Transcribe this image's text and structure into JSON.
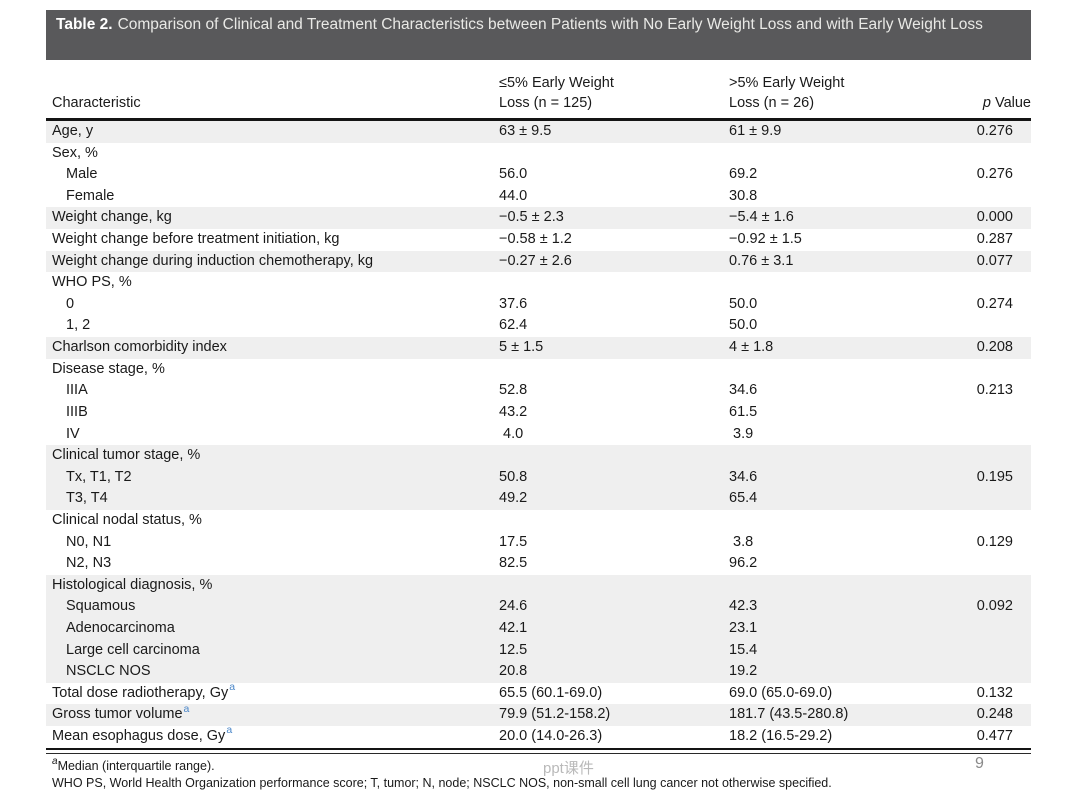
{
  "page": {
    "watermark": "ppt课件",
    "number": "9"
  },
  "title": {
    "label": "Table 2.",
    "text": "Comparison of Clinical and Treatment Characteristics between Patients with No Early Weight Loss and with Early Weight Loss"
  },
  "columns": {
    "characteristic": "Characteristic",
    "col2_line1": "≤5% Early Weight",
    "col2_line2": "Loss (n = 125)",
    "col3_line1": ">5% Early Weight",
    "col3_line2": "Loss (n = 26)",
    "p_italic": "p",
    "p_rest": " Value"
  },
  "colors": {
    "title_bar": "#59595b",
    "row_stripe": "#efefef",
    "superscript_blue": "#4a86c8",
    "rule_black": "#141414"
  },
  "table": {
    "rows": [
      {
        "label": "Age, y",
        "indent": false,
        "shaded": true,
        "sup": "",
        "c2": "63 ± 9.5",
        "c3": "61 ± 9.9",
        "p": "0.276"
      },
      {
        "label": "Sex, %",
        "indent": false,
        "shaded": false,
        "sup": "",
        "c2": "",
        "c3": "",
        "p": ""
      },
      {
        "label": "Male",
        "indent": true,
        "shaded": false,
        "sup": "",
        "c2": "56.0",
        "c3": "69.2",
        "p": "0.276"
      },
      {
        "label": "Female",
        "indent": true,
        "shaded": false,
        "sup": "",
        "c2": "44.0",
        "c3": "30.8",
        "p": ""
      },
      {
        "label": "Weight change, kg",
        "indent": false,
        "shaded": true,
        "sup": "",
        "c2": "−0.5 ± 2.3",
        "c3": "−5.4 ± 1.6",
        "p": "0.000"
      },
      {
        "label": "Weight change before treatment initiation, kg",
        "indent": false,
        "shaded": false,
        "sup": "",
        "c2": "−0.58 ± 1.2",
        "c3": "−0.92 ± 1.5",
        "p": "0.287"
      },
      {
        "label": "Weight change during induction chemotherapy, kg",
        "indent": false,
        "shaded": true,
        "sup": "",
        "c2": "−0.27 ± 2.6",
        "c3": "0.76 ± 3.1",
        "p": "0.077"
      },
      {
        "label": "WHO PS, %",
        "indent": false,
        "shaded": false,
        "sup": "",
        "c2": "",
        "c3": "",
        "p": ""
      },
      {
        "label": "0",
        "indent": true,
        "shaded": false,
        "sup": "",
        "c2": "37.6",
        "c3": "50.0",
        "p": "0.274"
      },
      {
        "label": "1, 2",
        "indent": true,
        "shaded": false,
        "sup": "",
        "c2": "62.4",
        "c3": "50.0",
        "p": ""
      },
      {
        "label": "Charlson comorbidity index",
        "indent": false,
        "shaded": true,
        "sup": "",
        "c2": "5 ± 1.5",
        "c3": "4 ± 1.8",
        "p": "0.208"
      },
      {
        "label": "Disease stage, %",
        "indent": false,
        "shaded": false,
        "sup": "",
        "c2": "",
        "c3": "",
        "p": ""
      },
      {
        "label": "IIIA",
        "indent": true,
        "shaded": false,
        "sup": "",
        "c2": "52.8",
        "c3": "34.6",
        "p": "0.213"
      },
      {
        "label": "IIIB",
        "indent": true,
        "shaded": false,
        "sup": "",
        "c2": "43.2",
        "c3": "61.5",
        "p": ""
      },
      {
        "label": "IV",
        "indent": true,
        "shaded": false,
        "sup": "",
        "c2": " 4.0",
        "c3": " 3.9",
        "p": ""
      },
      {
        "label": "Clinical tumor stage, %",
        "indent": false,
        "shaded": true,
        "sup": "",
        "c2": "",
        "c3": "",
        "p": ""
      },
      {
        "label": "Tx, T1, T2",
        "indent": true,
        "shaded": true,
        "sup": "",
        "c2": "50.8",
        "c3": "34.6",
        "p": "0.195"
      },
      {
        "label": "T3, T4",
        "indent": true,
        "shaded": true,
        "sup": "",
        "c2": "49.2",
        "c3": "65.4",
        "p": ""
      },
      {
        "label": "Clinical nodal status, %",
        "indent": false,
        "shaded": false,
        "sup": "",
        "c2": "",
        "c3": "",
        "p": ""
      },
      {
        "label": "N0, N1",
        "indent": true,
        "shaded": false,
        "sup": "",
        "c2": "17.5",
        "c3": " 3.8",
        "p": "0.129"
      },
      {
        "label": "N2, N3",
        "indent": true,
        "shaded": false,
        "sup": "",
        "c2": "82.5",
        "c3": "96.2",
        "p": ""
      },
      {
        "label": "Histological diagnosis, %",
        "indent": false,
        "shaded": true,
        "sup": "",
        "c2": "",
        "c3": "",
        "p": ""
      },
      {
        "label": "Squamous",
        "indent": true,
        "shaded": true,
        "sup": "",
        "c2": "24.6",
        "c3": "42.3",
        "p": "0.092"
      },
      {
        "label": "Adenocarcinoma",
        "indent": true,
        "shaded": true,
        "sup": "",
        "c2": "42.1",
        "c3": "23.1",
        "p": ""
      },
      {
        "label": "Large cell carcinoma",
        "indent": true,
        "shaded": true,
        "sup": "",
        "c2": "12.5",
        "c3": "15.4",
        "p": ""
      },
      {
        "label": "NSCLC NOS",
        "indent": true,
        "shaded": true,
        "sup": "",
        "c2": "20.8",
        "c3": "19.2",
        "p": ""
      },
      {
        "label": "Total dose radiotherapy, Gy",
        "indent": false,
        "shaded": false,
        "sup": "a",
        "c2": "65.5 (60.1-69.0)",
        "c3": "69.0 (65.0-69.0)",
        "p": "0.132"
      },
      {
        "label": "Gross tumor volume",
        "indent": false,
        "shaded": true,
        "sup": "a",
        "c2": "79.9 (51.2-158.2)",
        "c3": "181.7 (43.5-280.8)",
        "p": "0.248"
      },
      {
        "label": "Mean esophagus dose, Gy",
        "indent": false,
        "shaded": false,
        "sup": "a",
        "c2": "20.0 (14.0-26.3)",
        "c3": "18.2 (16.5-29.2)",
        "p": "0.477"
      }
    ]
  },
  "footnotes": {
    "marker": "a",
    "line1": "Median (interquartile range).",
    "line2": "WHO PS, World Health Organization performance score; T, tumor; N, node; NSCLC NOS, non-small cell lung cancer not otherwise specified."
  }
}
